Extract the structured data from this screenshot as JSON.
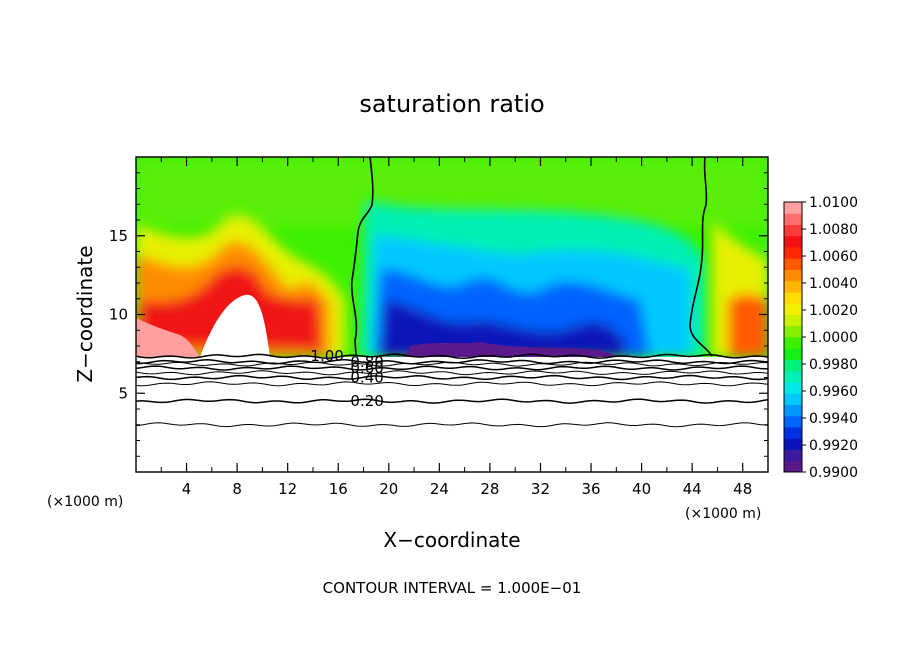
{
  "chart_data": {
    "type": "heatmap",
    "title": "saturation ratio",
    "xlabel": "X−coordinate",
    "ylabel": "Z−coordinate",
    "x_unit_left": "(×1000 m)",
    "x_unit_right": "(×1000 m)",
    "footer": "CONTOUR INTERVAL = 1.000E−01",
    "xlim": [
      0,
      50
    ],
    "ylim": [
      0,
      20
    ],
    "x_ticks": [
      4,
      8,
      12,
      16,
      20,
      24,
      28,
      32,
      36,
      40,
      44,
      48
    ],
    "x_tick_labels": [
      "4",
      "8",
      "12",
      "16",
      "20",
      "24",
      "28",
      "32",
      "36",
      "40",
      "44",
      "48"
    ],
    "y_ticks": [
      5,
      10,
      15
    ],
    "y_tick_labels": [
      "5",
      "10",
      "15"
    ],
    "colorbar": {
      "min": 0.99,
      "max": 1.01,
      "tick_labels": [
        "1.0100",
        "1.0080",
        "1.0060",
        "1.0040",
        "1.0020",
        "1.0000",
        "0.9980",
        "0.9960",
        "0.9940",
        "0.9920",
        "0.9900"
      ],
      "colors": [
        "#5a1a8c",
        "#3c1aa0",
        "#0a14b8",
        "#0030e0",
        "#0064ff",
        "#0096ff",
        "#00c8ff",
        "#00e6e6",
        "#00f0b4",
        "#00f078",
        "#14f014",
        "#3cf000",
        "#82f000",
        "#c8f000",
        "#f0f000",
        "#ffdc00",
        "#ffb400",
        "#ff8c00",
        "#ff5a00",
        "#ff2800",
        "#f01414",
        "#ff3c3c",
        "#ff6e6e",
        "#ffa0a0"
      ]
    },
    "contour_lines": [
      {
        "label": "1.00",
        "z": 7.35
      },
      {
        "label": "0.80",
        "z": 7.0
      },
      {
        "label": "0.60",
        "z": 6.6
      },
      {
        "label": "0.40",
        "z": 6.0
      },
      {
        "label": "0.20",
        "z": 4.5
      },
      {
        "label": "",
        "z": 6.85
      },
      {
        "label": "",
        "z": 6.3
      },
      {
        "label": "",
        "z": 5.6
      },
      {
        "label": "",
        "z": 3.0
      }
    ],
    "contour_label_x": 13.8,
    "field_description_regions": {
      "supersaturated_left_x": [
        0,
        17.5
      ],
      "subsaturated_center_x": [
        17.5,
        45.5
      ],
      "supersaturated_right_x": [
        45.5,
        50
      ],
      "cloud_base_z": 7.3
    }
  }
}
